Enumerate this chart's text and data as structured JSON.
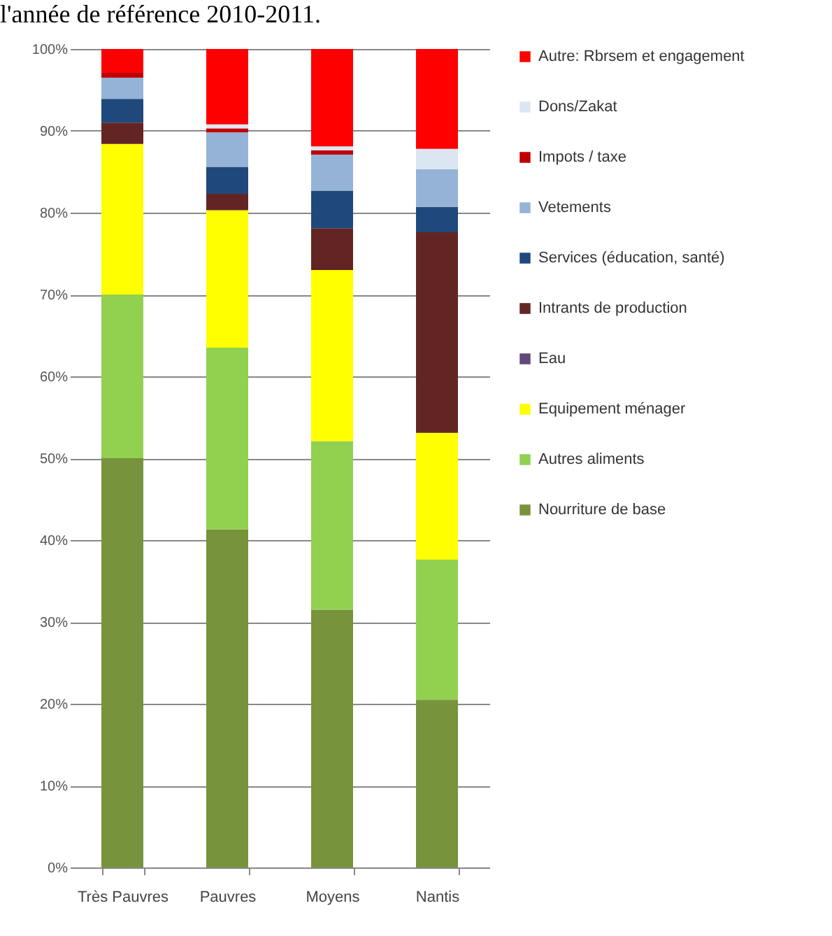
{
  "chart_data": {
    "type": "bar",
    "stacked": true,
    "title": "l'année de référence 2010-2011.",
    "categories": [
      "Très Pauvres",
      "Pauvres",
      "Moyens",
      "Nantis"
    ],
    "series": [
      {
        "name": "Nourriture de base",
        "color": "#77933c",
        "values": [
          50,
          41.3,
          31.5,
          20.5
        ]
      },
      {
        "name": "Autres aliments",
        "color": "#92d050",
        "values": [
          20,
          22.2,
          20.6,
          17.1
        ]
      },
      {
        "name": "Equipement ménager",
        "color": "#ffff00",
        "values": [
          18.4,
          16.8,
          20.9,
          15.5
        ]
      },
      {
        "name": "Eau",
        "color": "#604a7b",
        "values": [
          0,
          0,
          0,
          0
        ]
      },
      {
        "name": "Intrants de production",
        "color": "#632523",
        "values": [
          2.6,
          2,
          5.1,
          24.5
        ]
      },
      {
        "name": "Services (éducation, santé)",
        "color": "#1f497d",
        "values": [
          2.9,
          3.3,
          4.6,
          3.1
        ]
      },
      {
        "name": "Vetements",
        "color": "#95b3d7",
        "values": [
          2.6,
          4.2,
          4.4,
          4.6
        ]
      },
      {
        "name": "Impots / taxe",
        "color": "#c00000",
        "values": [
          0.6,
          0.5,
          0.5,
          0
        ]
      },
      {
        "name": "Dons/Zakat",
        "color": "#dce6f2",
        "values": [
          0,
          0.5,
          0.5,
          2.5
        ]
      },
      {
        "name": "Autre: Rbrsem et engagement",
        "color": "#ff0000",
        "values": [
          2.9,
          9.2,
          11.9,
          12.2
        ]
      }
    ],
    "ylim": [
      0,
      100
    ],
    "yticks": [
      {
        "value": 0,
        "label": "0%"
      },
      {
        "value": 10,
        "label": "10%"
      },
      {
        "value": 20,
        "label": "20%"
      },
      {
        "value": 30,
        "label": "30%"
      },
      {
        "value": 40,
        "label": "40%"
      },
      {
        "value": 50,
        "label": "50%"
      },
      {
        "value": 60,
        "label": "60%"
      },
      {
        "value": 70,
        "label": "70%"
      },
      {
        "value": 80,
        "label": "80%"
      },
      {
        "value": 90,
        "label": "90%"
      },
      {
        "value": 100,
        "label": "100%"
      }
    ],
    "grid": "y",
    "legend": "right"
  }
}
